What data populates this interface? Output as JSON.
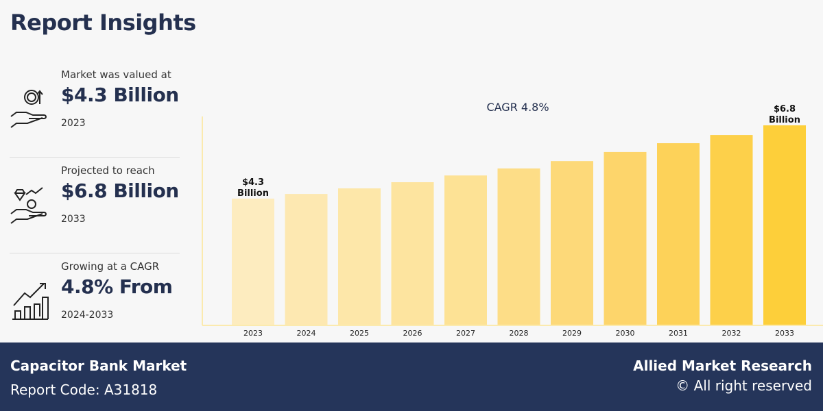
{
  "title": "Report Insights",
  "stats": [
    {
      "label": "Market was valued at",
      "value": "$4.3 Billion",
      "sub": "2023",
      "icon": "hand-coin-growth-icon"
    },
    {
      "label": "Projected to reach",
      "value": "$6.8 Billion",
      "sub": "2033",
      "icon": "hand-diamond-coin-icon"
    },
    {
      "label": "Growing at a CAGR",
      "value": "4.8% From",
      "sub": "2024-2033",
      "icon": "bar-growth-arrow-icon"
    }
  ],
  "chart_data": {
    "type": "bar",
    "title": "CAGR 4.8%",
    "categories": [
      "2023",
      "2024",
      "2025",
      "2026",
      "2027",
      "2028",
      "2029",
      "2030",
      "2031",
      "2032",
      "2033"
    ],
    "values": [
      4.3,
      4.46,
      4.65,
      4.86,
      5.09,
      5.33,
      5.58,
      5.89,
      6.19,
      6.47,
      6.8
    ],
    "data_labels": {
      "first": [
        "$4.3",
        "Billion"
      ],
      "last": [
        "$6.8",
        "Billion"
      ]
    },
    "xlabel": "",
    "ylabel": "",
    "ylim": [
      0,
      7.1
    ],
    "grid": false,
    "colors": [
      "#fdecbf",
      "#fde8b1",
      "#fde7a9",
      "#fde49f",
      "#fde295",
      "#fddd87",
      "#fdd979",
      "#fdd56b",
      "#fdd259",
      "#fdd04a",
      "#fdcf3a"
    ]
  },
  "footer": {
    "market": "Capacitor Bank Market",
    "code": "Report Code: A31818",
    "brand": "Allied Market Research",
    "rights": "© All right reserved"
  }
}
